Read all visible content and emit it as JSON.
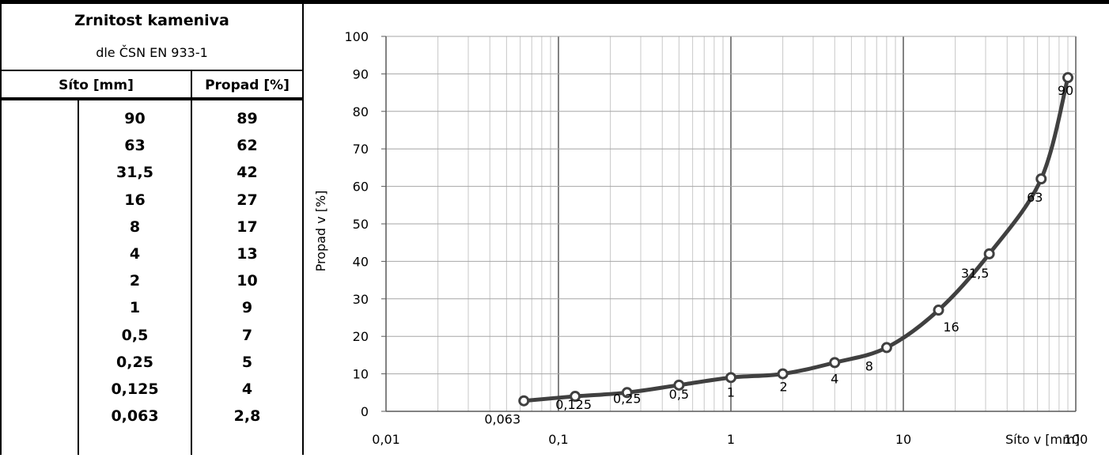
{
  "table": {
    "title": "Zrnitost kameniva",
    "subtitle": "dle ČSN EN 933-1",
    "headers": {
      "sieve": "Síto [mm]",
      "pass": "Propad [%]"
    },
    "rows": [
      {
        "sieve": "90",
        "pass": "89"
      },
      {
        "sieve": "63",
        "pass": "62"
      },
      {
        "sieve": "31,5",
        "pass": "42"
      },
      {
        "sieve": "16",
        "pass": "27"
      },
      {
        "sieve": "8",
        "pass": "17"
      },
      {
        "sieve": "4",
        "pass": "13"
      },
      {
        "sieve": "2",
        "pass": "10"
      },
      {
        "sieve": "1",
        "pass": "9"
      },
      {
        "sieve": "0,5",
        "pass": "7"
      },
      {
        "sieve": "0,25",
        "pass": "5"
      },
      {
        "sieve": "0,125",
        "pass": "4"
      },
      {
        "sieve": "0,063",
        "pass": "2,8"
      }
    ]
  },
  "chart_data": {
    "type": "line",
    "xlabel": "Síto v [mm]",
    "ylabel": "Propad v [%]",
    "xscale": "log",
    "xlim": [
      0.01,
      100
    ],
    "ylim": [
      0,
      100
    ],
    "x_ticks": [
      "0,01",
      "0,1",
      "1",
      "10",
      "100"
    ],
    "y_ticks": [
      "0",
      "10",
      "20",
      "30",
      "40",
      "50",
      "60",
      "70",
      "80",
      "90",
      "100"
    ],
    "grid": true,
    "points": [
      {
        "x": 0.063,
        "y": 2.8,
        "label": "0,063"
      },
      {
        "x": 0.125,
        "y": 4,
        "label": "0,125"
      },
      {
        "x": 0.25,
        "y": 5,
        "label": "0,25"
      },
      {
        "x": 0.5,
        "y": 7,
        "label": "0,5"
      },
      {
        "x": 1,
        "y": 9,
        "label": "1"
      },
      {
        "x": 2,
        "y": 10,
        "label": "2"
      },
      {
        "x": 4,
        "y": 13,
        "label": "4"
      },
      {
        "x": 8,
        "y": 17,
        "label": "8"
      },
      {
        "x": 16,
        "y": 27,
        "label": "16"
      },
      {
        "x": 31.5,
        "y": 42,
        "label": "31,5"
      },
      {
        "x": 63,
        "y": 62,
        "label": "63"
      },
      {
        "x": 90,
        "y": 89,
        "label": "90"
      }
    ],
    "line_color": "#404040"
  }
}
